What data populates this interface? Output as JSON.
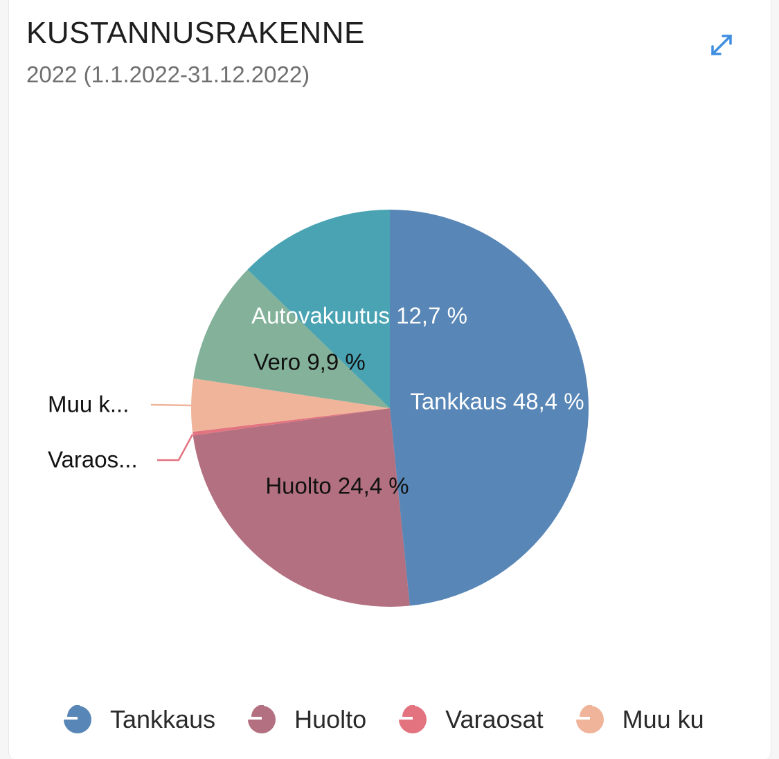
{
  "header": {
    "title": "KUSTANNUSRAKENNE",
    "subtitle": "2022 (1.1.2022-31.12.2022)",
    "expand_icon": "expand-arrows-icon"
  },
  "colors": {
    "accent": "#3f8ee0"
  },
  "chart_data": {
    "type": "pie",
    "title": "KUSTANNUSRAKENNE",
    "subtitle": "2022 (1.1.2022-31.12.2022)",
    "slices": [
      {
        "name": "Tankkaus",
        "value": 48.4,
        "label": "Tankkaus 48,4 %",
        "color": "#5886b6",
        "label_color": "#ffffff"
      },
      {
        "name": "Huolto",
        "value": 24.4,
        "label": "Huolto 24,4 %",
        "color": "#b37080",
        "label_color": "#111111"
      },
      {
        "name": "Varaosat",
        "value": 0.3,
        "label": "Varaos...",
        "color": "#e2737f",
        "label_color": "#111111"
      },
      {
        "name": "Muu kulu",
        "value": 4.3,
        "label": "Muu k...",
        "color": "#efb499",
        "label_color": "#111111"
      },
      {
        "name": "Vero",
        "value": 9.9,
        "label": "Vero 9,9 %",
        "color": "#83b19a",
        "label_color": "#111111"
      },
      {
        "name": "Autovakuutus",
        "value": 12.7,
        "label": "Autovakuutus 12,7 %",
        "color": "#4aa3b3",
        "label_color": "#ffffff"
      }
    ],
    "legend": {
      "placement": "bottom",
      "entries": [
        "Tankkaus",
        "Huolto",
        "Varaosat",
        "Muu ku"
      ]
    }
  }
}
